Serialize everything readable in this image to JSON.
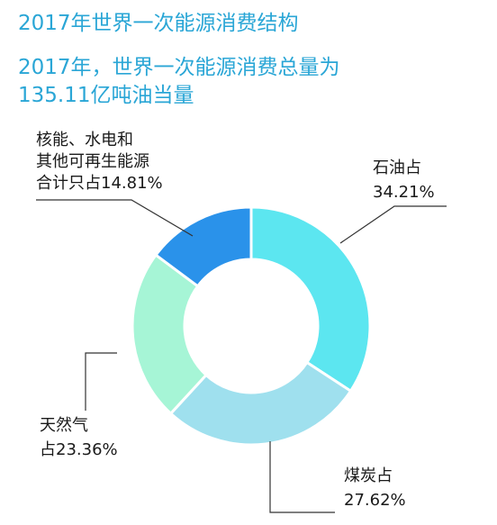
{
  "header": {
    "title": "2017年世界一次能源消费结构",
    "subtitle_line1": "2017年，世界一次能源消费总量为",
    "subtitle_line2": "135.11亿吨油当量"
  },
  "chart_data": {
    "type": "pie",
    "donut": true,
    "title": "2017年世界一次能源消费结构",
    "subtitle": "2017年，世界一次能源消费总量为135.11亿吨油当量",
    "categories": [
      "石油",
      "煤炭",
      "天然气",
      "核能、水电和其他可再生能源"
    ],
    "values": [
      34.21,
      27.62,
      23.36,
      14.81
    ],
    "unit": "%",
    "colors": [
      "#5ce6f0",
      "#9fe0ee",
      "#a6f5d6",
      "#2a92ea"
    ],
    "labels": [
      {
        "lines": [
          "石油占",
          "34.21%"
        ]
      },
      {
        "lines": [
          "煤炭占",
          "27.62%"
        ]
      },
      {
        "lines": [
          "天然气",
          "占23.36%"
        ]
      },
      {
        "lines": [
          "核能、水电和",
          "其他可再生能源",
          "合计只占14.81%"
        ]
      }
    ]
  }
}
